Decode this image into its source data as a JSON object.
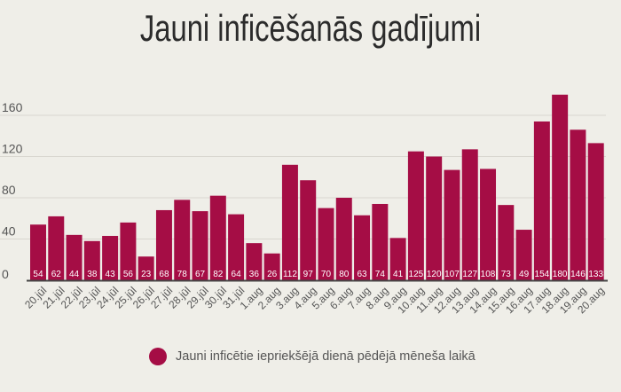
{
  "chart_data": {
    "type": "bar",
    "title": "Jauni inficēšanās gadījumi",
    "categories": [
      "20.jūl",
      "21.jūl",
      "22.jūl",
      "23.jūl",
      "24.jūl",
      "25.jūl",
      "26.jūl",
      "27.jūl",
      "28.jūl",
      "29.jūl",
      "30.jūl",
      "31.jūl",
      "1.aug",
      "2.aug",
      "3.aug",
      "4.aug",
      "5.aug",
      "6.aug",
      "7.aug",
      "8.aug",
      "9.aug",
      "10.aug",
      "11.aug",
      "12.aug",
      "13.aug",
      "14.aug",
      "15.aug",
      "16.aug",
      "17.aug",
      "18.aug",
      "19.aug",
      "20.aug"
    ],
    "series": [
      {
        "name": "Jauni inficētie iepriekšējā dienā pēdējā mēneša laikā",
        "values": [
          54,
          62,
          44,
          38,
          43,
          56,
          23,
          68,
          78,
          67,
          82,
          64,
          36,
          26,
          112,
          97,
          70,
          80,
          63,
          74,
          41,
          125,
          120,
          107,
          127,
          108,
          73,
          49,
          154,
          180,
          146,
          133
        ]
      }
    ],
    "yticks": [
      0,
      40,
      80,
      120,
      160
    ],
    "ylim": [
      0,
      180
    ],
    "grid": true,
    "legend": "bottom-center",
    "colors": {
      "bar": "#a50d45",
      "grid": "#d8d6cf",
      "axis": "#444444"
    }
  }
}
